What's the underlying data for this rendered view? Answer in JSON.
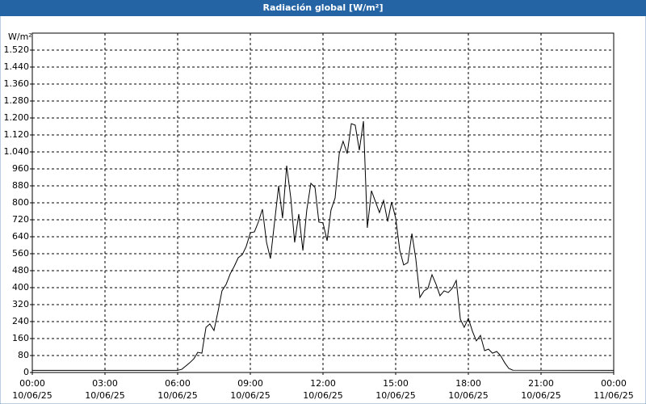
{
  "chart_data": {
    "type": "line",
    "title": "Radiación global [W/m²]",
    "y_label": "W/m²",
    "x": [
      0,
      6,
      6.17,
      6.33,
      6.5,
      6.67,
      6.83,
      7,
      7.17,
      7.33,
      7.5,
      7.67,
      7.83,
      8,
      8.17,
      8.33,
      8.5,
      8.67,
      8.83,
      9,
      9.17,
      9.33,
      9.5,
      9.67,
      9.83,
      10,
      10.17,
      10.33,
      10.5,
      10.67,
      10.83,
      11,
      11.17,
      11.33,
      11.5,
      11.67,
      11.83,
      12,
      12.17,
      12.33,
      12.5,
      12.67,
      12.83,
      13,
      13.17,
      13.33,
      13.5,
      13.67,
      13.83,
      14,
      14.17,
      14.33,
      14.5,
      14.67,
      14.83,
      15,
      15.17,
      15.33,
      15.5,
      15.67,
      15.83,
      16,
      16.17,
      16.33,
      16.5,
      16.67,
      16.83,
      17,
      17.17,
      17.33,
      17.5,
      17.67,
      17.83,
      18,
      18.17,
      18.33,
      18.5,
      18.67,
      18.83,
      19,
      19.17,
      19.33,
      19.5,
      19.67,
      19.83,
      24
    ],
    "series": [
      {
        "name": "Radiación global",
        "color": "#000000",
        "values": [
          10,
          10,
          15,
          30,
          46,
          65,
          95,
          91,
          213,
          229,
          198,
          290,
          385,
          415,
          465,
          499,
          541,
          556,
          594,
          659,
          663,
          709,
          770,
          613,
          537,
          709,
          880,
          728,
          975,
          823,
          613,
          747,
          575,
          766,
          892,
          872,
          709,
          705,
          621,
          766,
          823,
          1032,
          1090,
          1032,
          1173,
          1166,
          1048,
          1185,
          682,
          857,
          804,
          754,
          811,
          712,
          804,
          728,
          575,
          507,
          518,
          655,
          537,
          354,
          385,
          396,
          461,
          415,
          362,
          385,
          377,
          396,
          434,
          251,
          213,
          255,
          194,
          149,
          175,
          103,
          110,
          91,
          99,
          80,
          46,
          19,
          11,
          10
        ]
      }
    ],
    "xlim": [
      0,
      24
    ],
    "xticks": [
      {
        "value": 0,
        "label": "00:00",
        "date": "10/06/25"
      },
      {
        "value": 3,
        "label": "03:00",
        "date": "10/06/25"
      },
      {
        "value": 6,
        "label": "06:00",
        "date": "10/06/25"
      },
      {
        "value": 9,
        "label": "09:00",
        "date": "10/06/25"
      },
      {
        "value": 12,
        "label": "12:00",
        "date": "10/06/25"
      },
      {
        "value": 15,
        "label": "15:00",
        "date": "10/06/25"
      },
      {
        "value": 18,
        "label": "18:00",
        "date": "10/06/25"
      },
      {
        "value": 21,
        "label": "21:00",
        "date": "10/06/25"
      },
      {
        "value": 24,
        "label": "00:00",
        "date": "11/06/25"
      }
    ],
    "ylim": [
      0,
      1600
    ],
    "yticks": [
      0,
      80,
      160,
      240,
      320,
      400,
      480,
      560,
      640,
      720,
      800,
      880,
      960,
      {
        "value": 1040,
        "label": "1.040"
      },
      {
        "value": 1120,
        "label": "1.120"
      },
      {
        "value": 1200,
        "label": "1.200"
      },
      {
        "value": 1280,
        "label": "1.280"
      },
      {
        "value": 1360,
        "label": "1.360"
      },
      {
        "value": 1440,
        "label": "1.440"
      },
      {
        "value": 1520,
        "label": "1.520"
      }
    ],
    "grid": true
  }
}
